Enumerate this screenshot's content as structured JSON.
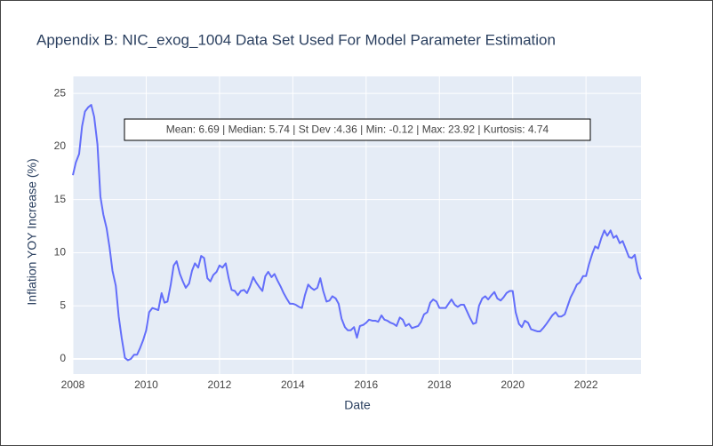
{
  "chart_data": {
    "type": "line",
    "title": "Appendix B: NIC_exog_1004 Data Set Used For Model Parameter Estimation",
    "x_label": "Date",
    "y_label": "Inflation YOY Increase (%)",
    "annotation": "Mean: 6.69 | Median: 5.74 | St Dev :4.36 | Min: -0.12 | Max: 23.92 | Kurtosis: 4.74",
    "color": "#636efa",
    "grid": true,
    "xlim": [
      2008,
      2023.5
    ],
    "xticks": [
      2008,
      2010,
      2012,
      2014,
      2016,
      2018,
      2020,
      2022
    ],
    "ylim": [
      -1.42,
      26.6
    ],
    "yticks": [
      0,
      5,
      10,
      15,
      20,
      25
    ],
    "x": [
      2008.0,
      2008.08,
      2008.17,
      2008.25,
      2008.33,
      2008.42,
      2008.5,
      2008.58,
      2008.67,
      2008.75,
      2008.83,
      2008.92,
      2009.0,
      2009.08,
      2009.17,
      2009.25,
      2009.33,
      2009.42,
      2009.5,
      2009.58,
      2009.67,
      2009.75,
      2009.83,
      2009.92,
      2010.0,
      2010.08,
      2010.17,
      2010.25,
      2010.33,
      2010.42,
      2010.5,
      2010.58,
      2010.67,
      2010.75,
      2010.83,
      2010.92,
      2011.0,
      2011.08,
      2011.17,
      2011.25,
      2011.33,
      2011.42,
      2011.5,
      2011.58,
      2011.67,
      2011.75,
      2011.83,
      2011.92,
      2012.0,
      2012.08,
      2012.17,
      2012.25,
      2012.33,
      2012.42,
      2012.5,
      2012.58,
      2012.67,
      2012.75,
      2012.83,
      2012.92,
      2013.0,
      2013.08,
      2013.17,
      2013.25,
      2013.33,
      2013.42,
      2013.5,
      2013.58,
      2013.67,
      2013.75,
      2013.83,
      2013.92,
      2014.0,
      2014.08,
      2014.17,
      2014.25,
      2014.33,
      2014.42,
      2014.5,
      2014.58,
      2014.67,
      2014.75,
      2014.83,
      2014.92,
      2015.0,
      2015.08,
      2015.17,
      2015.25,
      2015.33,
      2015.42,
      2015.5,
      2015.58,
      2015.67,
      2015.75,
      2015.83,
      2015.92,
      2016.0,
      2016.08,
      2016.17,
      2016.25,
      2016.33,
      2016.42,
      2016.5,
      2016.58,
      2016.67,
      2016.75,
      2016.83,
      2016.92,
      2017.0,
      2017.08,
      2017.17,
      2017.25,
      2017.33,
      2017.42,
      2017.5,
      2017.58,
      2017.67,
      2017.75,
      2017.83,
      2017.92,
      2018.0,
      2018.08,
      2018.17,
      2018.25,
      2018.33,
      2018.42,
      2018.5,
      2018.58,
      2018.67,
      2018.75,
      2018.83,
      2018.92,
      2019.0,
      2019.08,
      2019.17,
      2019.25,
      2019.33,
      2019.42,
      2019.5,
      2019.58,
      2019.67,
      2019.75,
      2019.83,
      2019.92,
      2020.0,
      2020.08,
      2020.17,
      2020.25,
      2020.33,
      2020.42,
      2020.5,
      2020.58,
      2020.67,
      2020.75,
      2020.83,
      2020.92,
      2021.0,
      2021.08,
      2021.17,
      2021.25,
      2021.33,
      2021.42,
      2021.5,
      2021.58,
      2021.67,
      2021.75,
      2021.83,
      2021.92,
      2022.0,
      2022.08,
      2022.17,
      2022.25,
      2022.33,
      2022.42,
      2022.5,
      2022.58,
      2022.67,
      2022.75,
      2022.83,
      2022.92,
      2023.0,
      2023.08,
      2023.17,
      2023.25,
      2023.33,
      2023.42,
      2023.5
    ],
    "values": [
      17.3,
      18.5,
      19.3,
      21.9,
      23.3,
      23.7,
      23.92,
      22.8,
      20.2,
      15.3,
      13.6,
      12.3,
      10.5,
      8.3,
      6.9,
      4.0,
      2.0,
      0.1,
      -0.12,
      0.0,
      0.4,
      0.4,
      1.0,
      1.8,
      2.7,
      4.4,
      4.8,
      4.7,
      4.6,
      6.2,
      5.3,
      5.4,
      7.0,
      8.8,
      9.2,
      8.0,
      7.3,
      6.7,
      7.1,
      8.3,
      9.0,
      8.6,
      9.7,
      9.5,
      7.6,
      7.3,
      7.9,
      8.2,
      8.8,
      8.6,
      9.0,
      7.6,
      6.5,
      6.4,
      6.0,
      6.4,
      6.5,
      6.2,
      6.8,
      7.7,
      7.2,
      6.8,
      6.4,
      7.8,
      8.2,
      7.7,
      8.0,
      7.4,
      6.8,
      6.2,
      5.7,
      5.2,
      5.2,
      5.1,
      4.9,
      4.8,
      6.0,
      7.0,
      6.7,
      6.5,
      6.7,
      7.6,
      6.4,
      5.4,
      5.5,
      5.9,
      5.7,
      5.2,
      3.8,
      3.0,
      2.7,
      2.7,
      3.0,
      2.0,
      3.1,
      3.2,
      3.4,
      3.7,
      3.6,
      3.6,
      3.5,
      4.1,
      3.7,
      3.6,
      3.4,
      3.3,
      3.1,
      3.9,
      3.7,
      3.1,
      3.3,
      2.9,
      3.0,
      3.1,
      3.5,
      4.2,
      4.4,
      5.3,
      5.6,
      5.4,
      4.8,
      4.8,
      4.8,
      5.2,
      5.6,
      5.1,
      4.9,
      5.1,
      5.1,
      4.5,
      3.9,
      3.3,
      3.4,
      5.0,
      5.7,
      5.9,
      5.6,
      6.0,
      6.3,
      5.7,
      5.5,
      5.8,
      6.2,
      6.4,
      6.4,
      4.4,
      3.3,
      3.0,
      3.6,
      3.4,
      2.8,
      2.7,
      2.6,
      2.6,
      2.9,
      3.3,
      3.7,
      4.1,
      4.4,
      4.0,
      4.0,
      4.2,
      5.0,
      5.8,
      6.4,
      7.0,
      7.2,
      7.8,
      7.8,
      8.9,
      9.9,
      10.6,
      10.4,
      11.4,
      12.1,
      11.6,
      12.1,
      11.4,
      11.6,
      10.9,
      11.1,
      10.4,
      9.6,
      9.5,
      9.8,
      8.2,
      7.5
    ]
  }
}
